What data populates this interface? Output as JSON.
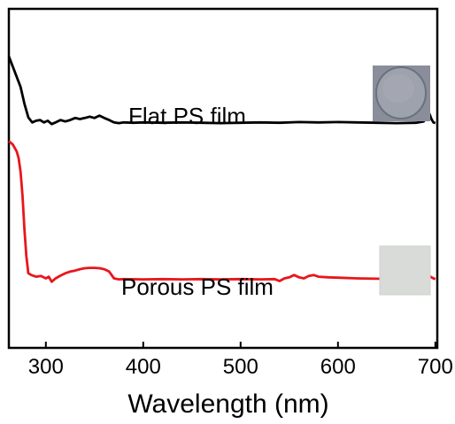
{
  "chart_data": {
    "type": "line",
    "xlabel": "Wavelength (nm)",
    "ylabel": "",
    "xlim": [
      262,
      702
    ],
    "x_ticks": [
      300,
      400,
      500,
      600,
      700
    ],
    "y_ticks_shown": false,
    "grid": false,
    "series": [
      {
        "name": "Flat PS film",
        "color": "#000000",
        "points": [
          [
            262,
            0.86
          ],
          [
            266,
            0.83
          ],
          [
            270,
            0.8
          ],
          [
            274,
            0.77
          ],
          [
            278,
            0.72
          ],
          [
            282,
            0.68
          ],
          [
            286,
            0.665
          ],
          [
            290,
            0.67
          ],
          [
            294,
            0.672
          ],
          [
            298,
            0.665
          ],
          [
            302,
            0.67
          ],
          [
            306,
            0.66
          ],
          [
            310,
            0.665
          ],
          [
            315,
            0.672
          ],
          [
            320,
            0.668
          ],
          [
            325,
            0.672
          ],
          [
            330,
            0.678
          ],
          [
            335,
            0.675
          ],
          [
            340,
            0.678
          ],
          [
            345,
            0.682
          ],
          [
            350,
            0.678
          ],
          [
            355,
            0.685
          ],
          [
            360,
            0.678
          ],
          [
            365,
            0.672
          ],
          [
            370,
            0.665
          ],
          [
            375,
            0.663
          ],
          [
            380,
            0.665
          ],
          [
            390,
            0.664
          ],
          [
            400,
            0.665
          ],
          [
            420,
            0.664
          ],
          [
            440,
            0.665
          ],
          [
            460,
            0.664
          ],
          [
            480,
            0.663
          ],
          [
            500,
            0.664
          ],
          [
            520,
            0.665
          ],
          [
            540,
            0.664
          ],
          [
            560,
            0.666
          ],
          [
            580,
            0.665
          ],
          [
            600,
            0.666
          ],
          [
            620,
            0.665
          ],
          [
            640,
            0.664
          ],
          [
            660,
            0.663
          ],
          [
            680,
            0.664
          ],
          [
            688,
            0.668
          ],
          [
            692,
            0.685
          ],
          [
            694,
            0.69
          ],
          [
            696,
            0.675
          ],
          [
            698,
            0.665
          ],
          [
            700,
            0.663
          ]
        ]
      },
      {
        "name": "Porous PS film",
        "color": "#e8161b",
        "points": [
          [
            262,
            0.61
          ],
          [
            266,
            0.6
          ],
          [
            270,
            0.58
          ],
          [
            272,
            0.56
          ],
          [
            274,
            0.52
          ],
          [
            276,
            0.45
          ],
          [
            278,
            0.35
          ],
          [
            280,
            0.27
          ],
          [
            282,
            0.22
          ],
          [
            285,
            0.215
          ],
          [
            290,
            0.21
          ],
          [
            295,
            0.212
          ],
          [
            300,
            0.205
          ],
          [
            303,
            0.21
          ],
          [
            306,
            0.195
          ],
          [
            310,
            0.205
          ],
          [
            315,
            0.213
          ],
          [
            320,
            0.22
          ],
          [
            325,
            0.225
          ],
          [
            330,
            0.228
          ],
          [
            335,
            0.232
          ],
          [
            340,
            0.235
          ],
          [
            345,
            0.236
          ],
          [
            350,
            0.236
          ],
          [
            355,
            0.235
          ],
          [
            360,
            0.232
          ],
          [
            365,
            0.225
          ],
          [
            370,
            0.205
          ],
          [
            375,
            0.202
          ],
          [
            380,
            0.203
          ],
          [
            400,
            0.202
          ],
          [
            420,
            0.203
          ],
          [
            440,
            0.202
          ],
          [
            460,
            0.203
          ],
          [
            480,
            0.202
          ],
          [
            500,
            0.203
          ],
          [
            520,
            0.202
          ],
          [
            535,
            0.203
          ],
          [
            540,
            0.197
          ],
          [
            545,
            0.205
          ],
          [
            550,
            0.208
          ],
          [
            555,
            0.215
          ],
          [
            560,
            0.208
          ],
          [
            565,
            0.205
          ],
          [
            570,
            0.212
          ],
          [
            575,
            0.215
          ],
          [
            580,
            0.21
          ],
          [
            590,
            0.208
          ],
          [
            600,
            0.207
          ],
          [
            620,
            0.205
          ],
          [
            640,
            0.204
          ],
          [
            660,
            0.203
          ],
          [
            680,
            0.204
          ],
          [
            688,
            0.21
          ],
          [
            692,
            0.218
          ],
          [
            695,
            0.21
          ],
          [
            698,
            0.205
          ],
          [
            700,
            0.203
          ]
        ]
      }
    ]
  }
}
